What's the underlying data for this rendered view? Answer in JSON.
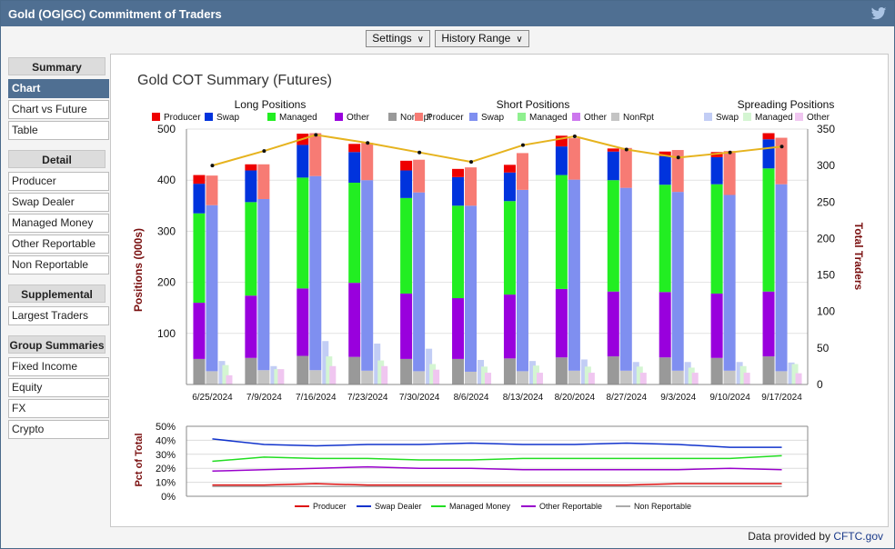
{
  "window": {
    "title": "Gold (OG|GC) Commitment of Traders"
  },
  "toolbar": {
    "settings_label": "Settings",
    "history_label": "History Range"
  },
  "sidebar": {
    "sections": [
      {
        "header": "Summary",
        "items": [
          {
            "label": "Chart",
            "active": true
          },
          {
            "label": "Chart vs Future"
          },
          {
            "label": "Table"
          }
        ]
      },
      {
        "header": "Detail",
        "items": [
          {
            "label": "Producer"
          },
          {
            "label": "Swap Dealer"
          },
          {
            "label": "Managed Money"
          },
          {
            "label": "Other Reportable"
          },
          {
            "label": "Non Reportable"
          }
        ]
      },
      {
        "header": "Supplemental",
        "items": [
          {
            "label": "Largest Traders"
          }
        ]
      },
      {
        "header": "Group Summaries",
        "items": [
          {
            "label": "Fixed Income"
          },
          {
            "label": "Equity"
          },
          {
            "label": "FX"
          },
          {
            "label": "Crypto"
          }
        ]
      }
    ]
  },
  "footer": {
    "credit_prefix": "Data provided by ",
    "credit_link": "CFTC.gov"
  },
  "chart_data": [
    {
      "type": "bar",
      "title": "Gold COT Summary (Futures)",
      "ylabel": "Positions (000s)",
      "y2label": "Total Traders",
      "ylim": [
        0,
        500
      ],
      "y2lim": [
        0,
        350
      ],
      "y_ticks": [
        100,
        200,
        300,
        400,
        500
      ],
      "y2_ticks": [
        0,
        50,
        100,
        150,
        200,
        250,
        300,
        350
      ],
      "categories": [
        "6/25/2024",
        "7/9/2024",
        "7/16/2024",
        "7/23/2024",
        "7/30/2024",
        "8/6/2024",
        "8/13/2024",
        "8/20/2024",
        "8/27/2024",
        "9/3/2024",
        "9/10/2024",
        "9/17/2024"
      ],
      "groups": [
        {
          "title": "Long Positions",
          "labels": [
            "Producer",
            "Swap",
            "Managed",
            "Other",
            "NonRpt"
          ],
          "colors": [
            "#ee0000",
            "#0033dd",
            "#22ee22",
            "#9900dd",
            "#999999"
          ]
        },
        {
          "title": "Short Positions",
          "labels": [
            "Producer",
            "Swap",
            "Managed",
            "Other",
            "NonRpt"
          ],
          "colors": [
            "#f77b74",
            "#7f8ff0",
            "#8ff08f",
            "#cc77ee",
            "#c4c4c4"
          ]
        },
        {
          "title": "Spreading Positions",
          "labels": [
            "Swap",
            "Managed",
            "Other"
          ],
          "colors": [
            "#c2cdf5",
            "#d4f5d2",
            "#f0c6f0"
          ]
        }
      ],
      "long": {
        "nonrpt": [
          50,
          52,
          56,
          54,
          50,
          50,
          51,
          53,
          55,
          53,
          52,
          55
        ],
        "other": [
          110,
          122,
          132,
          145,
          128,
          119,
          125,
          134,
          127,
          128,
          126,
          127
        ],
        "managed": [
          175,
          183,
          217,
          196,
          187,
          181,
          183,
          223,
          218,
          210,
          214,
          241
        ],
        "swap": [
          58,
          62,
          64,
          60,
          54,
          56,
          56,
          56,
          56,
          56,
          53,
          57
        ],
        "producer": [
          17,
          12,
          22,
          16,
          19,
          16,
          15,
          21,
          6,
          9,
          10,
          12
        ]
      },
      "short": {
        "nonrpt": [
          26,
          28,
          28,
          27,
          26,
          25,
          26,
          27,
          27,
          27,
          27,
          26
        ],
        "swap": [
          325,
          335,
          380,
          373,
          350,
          325,
          355,
          374,
          358,
          350,
          344,
          366
        ],
        "producer": [
          58,
          68,
          84,
          73,
          64,
          75,
          72,
          81,
          78,
          82,
          86,
          91
        ]
      },
      "spreading": {
        "swap": [
          46,
          36,
          85,
          80,
          70,
          48,
          46,
          49,
          44,
          44,
          44,
          43
        ],
        "managed": [
          38,
          30,
          55,
          47,
          40,
          35,
          37,
          35,
          35,
          33,
          36,
          40
        ],
        "other": [
          18,
          30,
          36,
          36,
          29,
          23,
          23,
          23,
          23,
          23,
          23,
          22
        ]
      },
      "total_traders": [
        300,
        320,
        342,
        331,
        318,
        305,
        328,
        340,
        322,
        311,
        318,
        326
      ]
    },
    {
      "type": "line",
      "ylabel": "Pct of Total",
      "ylim": [
        0,
        50
      ],
      "y_ticks": [
        "0%",
        "10%",
        "20%",
        "30%",
        "40%",
        "50%"
      ],
      "series": [
        {
          "name": "Producer",
          "color": "#dd1111",
          "values": [
            8,
            8,
            9,
            8,
            8,
            8,
            8,
            8,
            8,
            9,
            9,
            9
          ]
        },
        {
          "name": "Swap Dealer",
          "color": "#1133cc",
          "values": [
            41,
            37,
            36,
            37,
            37,
            38,
            37,
            37,
            38,
            37,
            35,
            35
          ]
        },
        {
          "name": "Managed Money",
          "color": "#22dd22",
          "values": [
            25,
            28,
            27,
            27,
            26,
            26,
            27,
            27,
            27,
            27,
            27,
            29
          ]
        },
        {
          "name": "Other Reportable",
          "color": "#9900cc",
          "values": [
            18,
            19,
            20,
            21,
            20,
            20,
            19,
            19,
            19,
            19,
            20,
            19
          ]
        },
        {
          "name": "Non Reportable",
          "color": "#aaaaaa",
          "values": [
            7,
            7,
            7,
            7,
            7,
            7,
            7,
            7,
            7,
            7,
            7,
            7
          ]
        }
      ]
    }
  ]
}
